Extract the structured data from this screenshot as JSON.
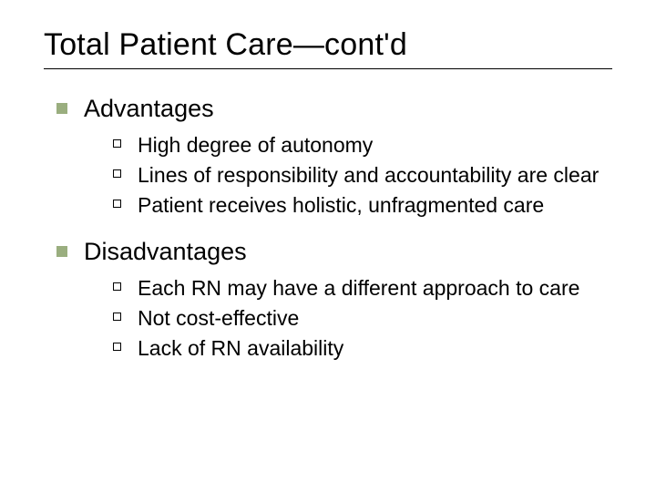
{
  "title": "Total Patient Care—cont'd",
  "colors": {
    "bullet_lvl1": "#9aae7f",
    "bullet_lvl2_border": "#000000",
    "text": "#000000",
    "background": "#ffffff",
    "rule": "#000000"
  },
  "typography": {
    "family": "Arial",
    "title_size_pt": 34,
    "lvl1_size_pt": 27,
    "lvl2_size_pt": 23
  },
  "sections": [
    {
      "heading": "Advantages",
      "items": [
        "High degree of autonomy",
        "Lines of responsibility and accountability are clear",
        "Patient receives holistic, unfragmented care"
      ]
    },
    {
      "heading": "Disadvantages",
      "items": [
        "Each RN may have a different approach to care",
        "Not cost-effective",
        "Lack of RN availability"
      ]
    }
  ]
}
